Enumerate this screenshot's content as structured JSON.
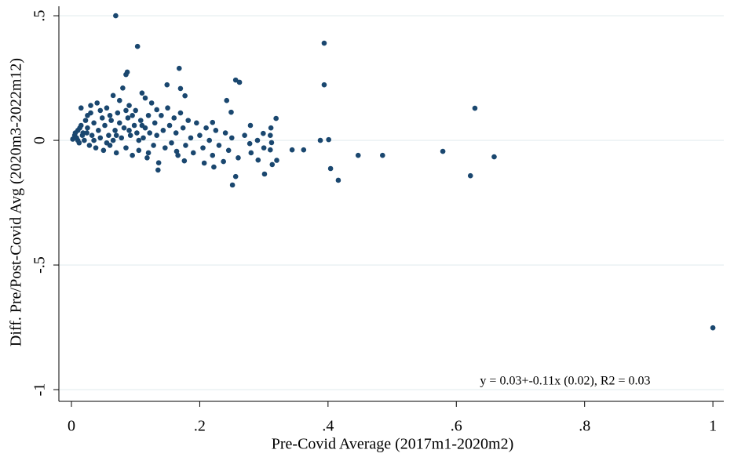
{
  "chart_data": {
    "type": "scatter",
    "x_label": "Pre-Covid Average (2017m1-2020m2)",
    "y_label": "Diff. Pre/Post-Covid Avg (2020m3-2022m12)",
    "annotation": "y = 0.03+-0.11x (0.02), R2 = 0.03",
    "color": "#1a476f",
    "grid": true,
    "xlim": [
      -0.0196,
      1.017
    ],
    "ylim": [
      -1.047,
      0.538
    ],
    "xticks": [
      0,
      {
        "value": 0.2,
        "label": ".2"
      },
      {
        "value": 0.4,
        "label": ".4"
      },
      {
        "value": 0.6,
        "label": ".6"
      },
      {
        "value": 0.8,
        "label": ".8"
      },
      1
    ],
    "yticks": [
      {
        "value": -1,
        "label": "-1"
      },
      {
        "value": -0.5,
        "label": "-.5"
      },
      0,
      {
        "value": 0.5,
        "label": ".5"
      }
    ],
    "x": [
      0.069,
      0.103,
      0.394,
      0.394,
      0.168,
      0.256,
      0.262,
      0.087,
      0.085,
      0.629,
      0.319,
      0.388,
      0.401,
      0.404,
      0.416,
      0.447,
      0.485,
      0.579,
      0.622,
      0.659,
      1.0,
      0.301,
      0.313,
      0.344,
      0.362,
      0.31,
      0.291,
      0.251,
      0.256,
      0.237,
      0.299,
      0.311,
      0.312,
      0.279,
      0.278,
      0.242,
      0.249,
      0.22,
      0.17,
      0.177,
      0.149,
      0.115,
      0.133,
      0.164,
      0.135,
      0.176,
      0.207,
      0.222,
      0.005,
      0.008,
      0.01,
      0.012,
      0.015,
      0.018,
      0.02,
      0.022,
      0.025,
      0.028,
      0.03,
      0.032,
      0.035,
      0.038,
      0.04,
      0.042,
      0.045,
      0.048,
      0.05,
      0.052,
      0.055,
      0.058,
      0.06,
      0.062,
      0.065,
      0.068,
      0.07,
      0.072,
      0.075,
      0.078,
      0.08,
      0.082,
      0.085,
      0.088,
      0.09,
      0.092,
      0.095,
      0.098,
      0.1,
      0.102,
      0.105,
      0.108,
      0.11,
      0.112,
      0.115,
      0.118,
      0.12,
      0.122,
      0.125,
      0.128,
      0.13,
      0.133,
      0.136,
      0.14,
      0.143,
      0.146,
      0.15,
      0.153,
      0.156,
      0.16,
      0.163,
      0.166,
      0.17,
      0.174,
      0.178,
      0.182,
      0.186,
      0.19,
      0.195,
      0.2,
      0.205,
      0.21,
      0.215,
      0.22,
      0.225,
      0.23,
      0.24,
      0.245,
      0.25,
      0.26,
      0.27,
      0.28,
      0.29,
      0.3,
      0.31,
      0.32,
      0.025,
      0.035,
      0.045,
      0.055,
      0.065,
      0.075,
      0.085,
      0.095,
      0.105,
      0.015,
      0.03,
      0.06,
      0.07,
      0.09,
      0.11,
      0.12,
      0.002,
      0.006,
      0.01,
      0.013,
      0.017,
      0.024
    ],
    "values": [
      0.5,
      0.377,
      0.39,
      0.223,
      0.289,
      0.242,
      0.233,
      0.274,
      0.264,
      0.129,
      0.088,
      0,
      0.003,
      -0.113,
      -0.16,
      -0.06,
      -0.06,
      -0.044,
      -0.142,
      -0.066,
      -0.752,
      -0.135,
      -0.097,
      -0.038,
      -0.038,
      -0.038,
      -0.079,
      -0.179,
      -0.145,
      -0.085,
      0.028,
      0.05,
      -0.009,
      0.06,
      -0.013,
      0.16,
      0.113,
      0.072,
      0.208,
      0.179,
      0.223,
      0.17,
      0.123,
      -0.044,
      -0.119,
      -0.082,
      -0.091,
      -0.107,
      0.02,
      0.01,
      0.04,
      -0.01,
      0.06,
      0.03,
      0,
      0.08,
      0.05,
      -0.02,
      0.11,
      0.02,
      0.07,
      -0.03,
      0.15,
      0.04,
      0.01,
      0.09,
      -0.04,
      0.06,
      0.13,
      0.02,
      -0.02,
      0.08,
      0.18,
      0.04,
      -0.05,
      0.11,
      0.07,
      0.01,
      0.21,
      0.05,
      -0.03,
      0.09,
      0.14,
      0.02,
      -0.06,
      0.06,
      0.12,
      0.03,
      -0.04,
      0.08,
      0.19,
      0.01,
      0.05,
      -0.07,
      0.1,
      0.03,
      0.15,
      -0.02,
      0.07,
      0.02,
      -0.09,
      0.1,
      0.04,
      -0.03,
      0.13,
      0.06,
      -0.01,
      0.09,
      0.03,
      -0.06,
      0.11,
      0.05,
      -0.02,
      0.08,
      0.01,
      -0.05,
      0.07,
      0.02,
      -0.03,
      0.05,
      0,
      -0.06,
      0.04,
      -0.02,
      0.03,
      -0.04,
      0.01,
      -0.07,
      0.02,
      -0.05,
      0,
      -0.03,
      0.02,
      -0.08,
      0.1,
      0,
      0.12,
      -0.01,
      0,
      0.16,
      0.12,
      0.1,
      0,
      0.13,
      0.14,
      0.1,
      0.02,
      0.04,
      0.06,
      -0.05,
      0.005,
      0.03,
      0,
      0.05,
      0.02,
      0.03
    ]
  }
}
